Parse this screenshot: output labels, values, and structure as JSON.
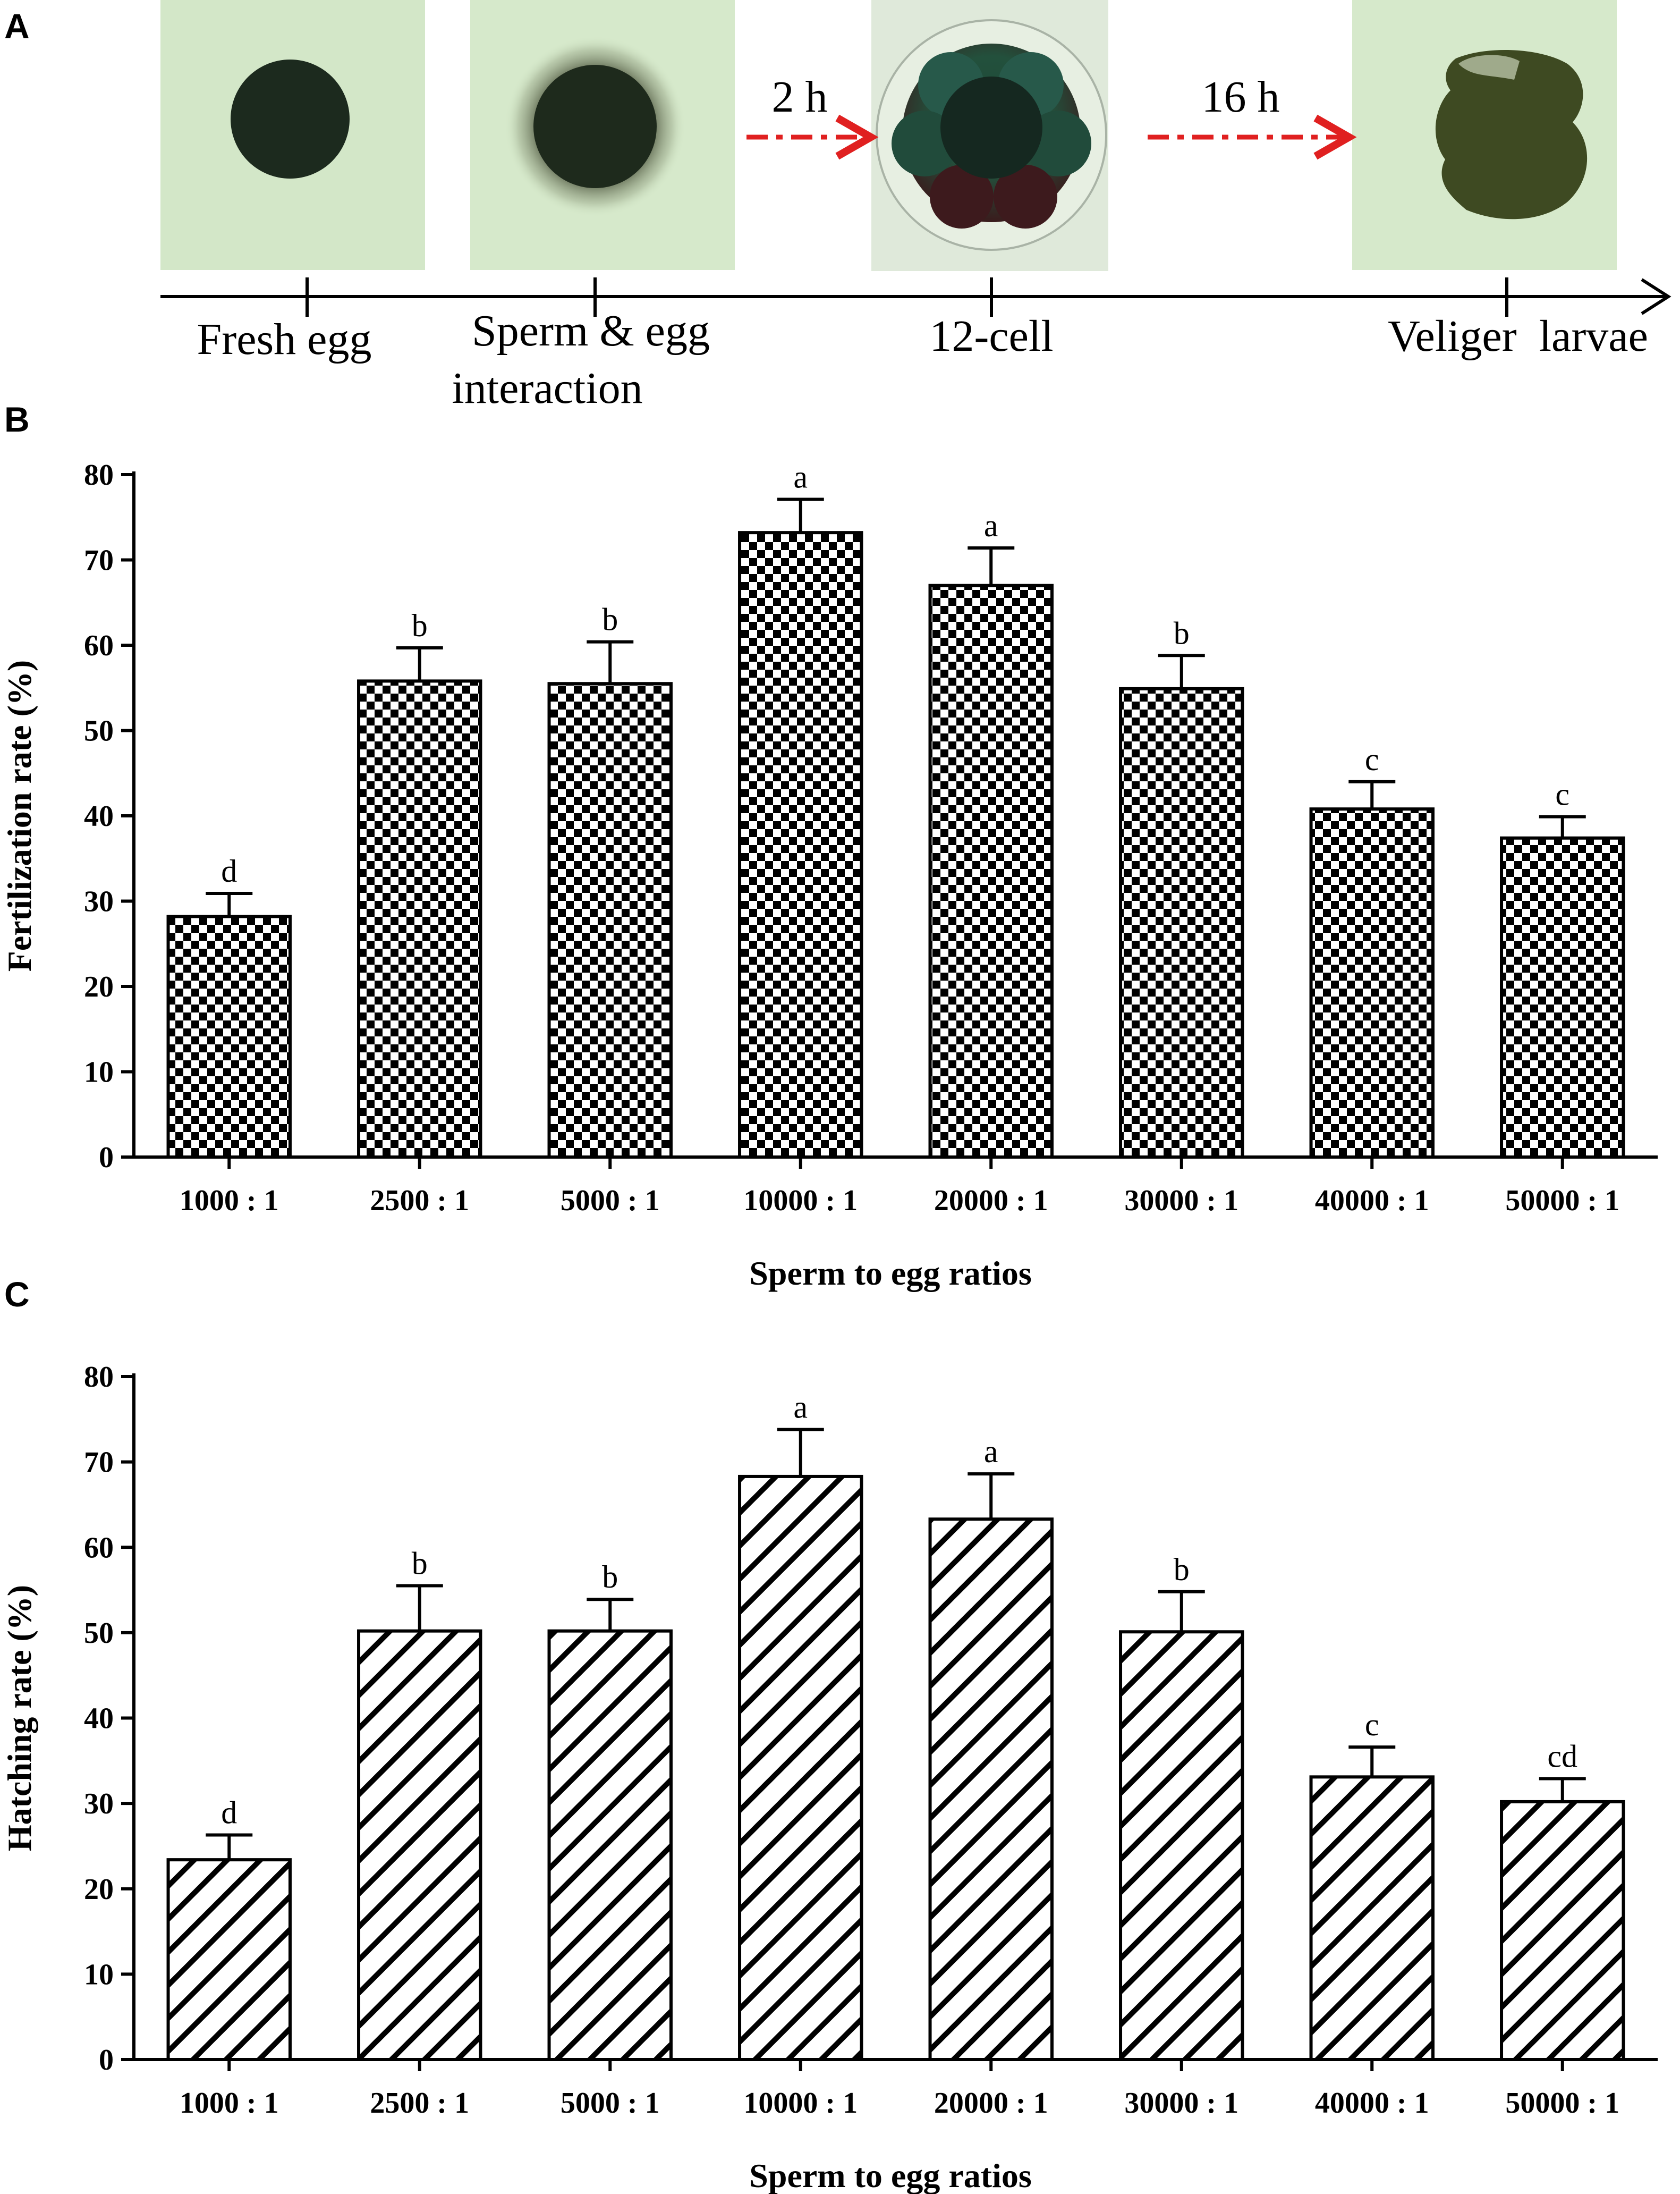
{
  "panelA": {
    "letter": "A",
    "stages": [
      {
        "label": "Fresh egg"
      },
      {
        "label": "Sperm & egg",
        "label2": "interaction"
      },
      {
        "label": "12-cell"
      },
      {
        "label": "Veliger  larvae"
      }
    ],
    "arrows": [
      {
        "label": "2 h"
      },
      {
        "label": "16 h"
      }
    ],
    "colors": {
      "photo_bg": "#d4e8c8",
      "egg": "#1c2a1c",
      "arrow": "#e02020"
    }
  },
  "chart_data": [
    {
      "panel_letter": "B",
      "type": "bar",
      "pattern": "checkerboard",
      "categories": [
        "1000 : 1",
        "2500 : 1",
        "5000 : 1",
        "10000 : 1",
        "20000 : 1",
        "30000 : 1",
        "40000 : 1",
        "50000 : 1"
      ],
      "values": [
        28.2,
        55.8,
        55.5,
        73.2,
        67.0,
        54.9,
        40.8,
        37.4
      ],
      "errors": [
        2.7,
        3.9,
        4.9,
        3.9,
        4.4,
        3.9,
        3.2,
        2.5
      ],
      "significance": [
        "d",
        "b",
        "b",
        "a",
        "a",
        "b",
        "c",
        "c"
      ],
      "xlabel": "Sperm to egg ratios",
      "ylabel": "Fertilization rate (%)",
      "ylim": [
        0,
        80
      ],
      "yticks": [
        "0",
        "10",
        "20",
        "30",
        "40",
        "50",
        "60",
        "70",
        "80"
      ]
    },
    {
      "panel_letter": "C",
      "type": "bar",
      "pattern": "diagonal-hatch",
      "categories": [
        "1000 : 1",
        "2500 : 1",
        "5000 : 1",
        "10000 : 1",
        "20000 : 1",
        "30000 : 1",
        "40000 : 1",
        "50000 : 1"
      ],
      "values": [
        23.4,
        50.2,
        50.2,
        68.3,
        63.3,
        50.1,
        33.1,
        30.2
      ],
      "errors": [
        2.9,
        5.3,
        3.7,
        5.5,
        5.3,
        4.7,
        3.5,
        2.7
      ],
      "significance": [
        "d",
        "b",
        "b",
        "a",
        "a",
        "b",
        "c",
        "cd"
      ],
      "xlabel": "Sperm to egg ratios",
      "ylabel": "Hatching rate (%)",
      "ylim": [
        0,
        80
      ],
      "yticks": [
        "0",
        "10",
        "20",
        "30",
        "40",
        "50",
        "60",
        "70",
        "80"
      ]
    }
  ]
}
